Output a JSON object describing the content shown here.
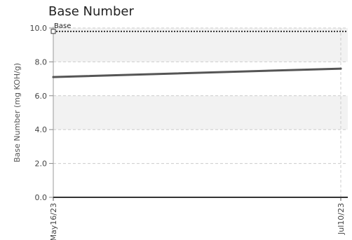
{
  "chart_data": {
    "type": "line",
    "title": "Base Number",
    "ylabel": "Base Number (mg KOH/g)",
    "xlabel": "",
    "ylim": [
      0,
      10
    ],
    "yticks": [
      "0.0",
      "2.0",
      "4.0",
      "6.0",
      "8.0",
      "10.0"
    ],
    "xticks": [
      "May16/23",
      "Jul10/23"
    ],
    "grid": true,
    "shaded_bands": [
      [
        4,
        6
      ],
      [
        8,
        10
      ]
    ],
    "series": [
      {
        "name": "",
        "x": [
          "May16/23",
          "Jul10/23"
        ],
        "values": [
          7.1,
          7.6
        ],
        "color": "#555555"
      }
    ],
    "reference_lines": [
      {
        "label": "Base",
        "value": 9.8,
        "style": "dotted",
        "color": "#333333"
      }
    ]
  }
}
